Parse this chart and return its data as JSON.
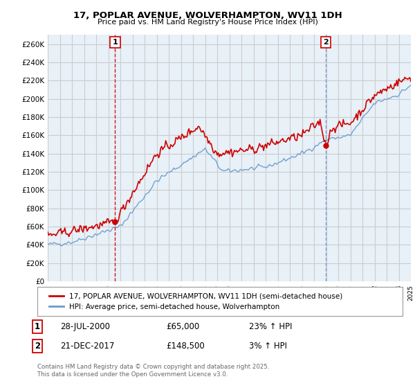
{
  "title_line1": "17, POPLAR AVENUE, WOLVERHAMPTON, WV11 1DH",
  "title_line2": "Price paid vs. HM Land Registry's House Price Index (HPI)",
  "ylabel_values": [
    "£0",
    "£20K",
    "£40K",
    "£60K",
    "£80K",
    "£100K",
    "£120K",
    "£140K",
    "£160K",
    "£180K",
    "£200K",
    "£220K",
    "£240K",
    "£260K"
  ],
  "ylim": [
    0,
    270000
  ],
  "yticks": [
    0,
    20000,
    40000,
    60000,
    80000,
    100000,
    120000,
    140000,
    160000,
    180000,
    200000,
    220000,
    240000,
    260000
  ],
  "xmin_year": 1995,
  "xmax_year": 2025,
  "xticks": [
    1995,
    1996,
    1997,
    1998,
    1999,
    2000,
    2001,
    2002,
    2003,
    2004,
    2005,
    2006,
    2007,
    2008,
    2009,
    2010,
    2011,
    2012,
    2013,
    2014,
    2015,
    2016,
    2017,
    2018,
    2019,
    2020,
    2021,
    2022,
    2023,
    2024,
    2025
  ],
  "red_color": "#cc0000",
  "blue_color": "#6699cc",
  "vline1_color": "#cc0000",
  "vline2_color": "#6699cc",
  "grid_color": "#cccccc",
  "bg_color": "#ffffff",
  "chart_bg_color": "#e8f0f8",
  "legend_label_red": "17, POPLAR AVENUE, WOLVERHAMPTON, WV11 1DH (semi-detached house)",
  "legend_label_blue": "HPI: Average price, semi-detached house, Wolverhampton",
  "annotation1_box": "1",
  "annotation1_date": "28-JUL-2000",
  "annotation1_price": "£65,000",
  "annotation1_hpi": "23% ↑ HPI",
  "annotation2_box": "2",
  "annotation2_date": "21-DEC-2017",
  "annotation2_price": "£148,500",
  "annotation2_hpi": "3% ↑ HPI",
  "footer": "Contains HM Land Registry data © Crown copyright and database right 2025.\nThis data is licensed under the Open Government Licence v3.0.",
  "sale1_year": 2000.57,
  "sale1_price": 65000,
  "sale2_year": 2017.97,
  "sale2_price": 148500,
  "vline1_x": 2000.57,
  "vline2_x": 2017.97
}
